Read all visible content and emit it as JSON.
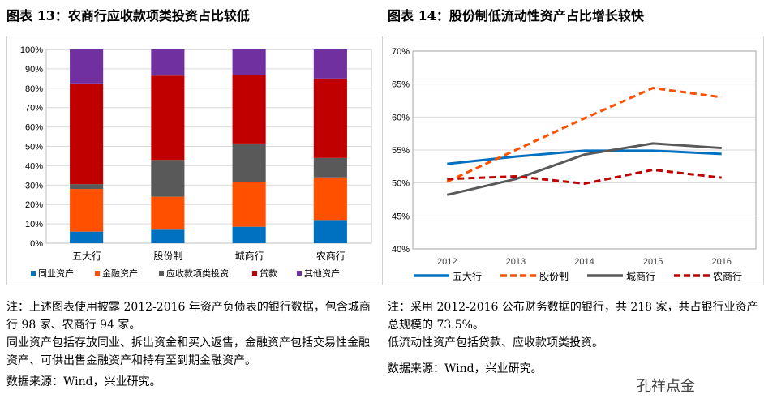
{
  "chart_data": [
    {
      "type": "bar",
      "stacked": true,
      "title": "图表 13：农商行应收款项类投资占比较低",
      "categories": [
        "五大行",
        "股份制",
        "城商行",
        "农商行"
      ],
      "ylim": [
        0,
        100
      ],
      "yticks": [
        "0%",
        "10%",
        "20%",
        "30%",
        "40%",
        "50%",
        "60%",
        "70%",
        "80%",
        "90%",
        "100%"
      ],
      "series": [
        {
          "name": "同业资产",
          "color": "#0070c0",
          "values": [
            6,
            7,
            8.5,
            12
          ]
        },
        {
          "name": "金融资产",
          "color": "#ff5000",
          "values": [
            22,
            17,
            23,
            22
          ]
        },
        {
          "name": "应收款项类投资",
          "color": "#595959",
          "values": [
            2.5,
            19,
            20,
            10
          ]
        },
        {
          "name": "贷款",
          "color": "#c00000",
          "values": [
            52,
            43.5,
            35.5,
            41
          ]
        },
        {
          "name": "其他资产",
          "color": "#7030a0",
          "values": [
            17.5,
            13.5,
            13,
            15
          ]
        }
      ],
      "legend": "bottom",
      "grid": true
    },
    {
      "type": "line",
      "title": "图表 14：股份制低流动性资产占比增长较快",
      "categories": [
        "2012",
        "2013",
        "2014",
        "2015",
        "2016"
      ],
      "ylim": [
        40,
        70
      ],
      "yticks": [
        "40%",
        "45%",
        "50%",
        "55%",
        "60%",
        "65%",
        "70%"
      ],
      "series": [
        {
          "name": "五大行",
          "color": "#0070c0",
          "dash": false,
          "values": [
            52.9,
            54.0,
            54.9,
            54.9,
            54.4
          ]
        },
        {
          "name": "股份制",
          "color": "#ff5000",
          "dash": true,
          "values": [
            50.2,
            55.0,
            59.8,
            64.4,
            63.0
          ]
        },
        {
          "name": "城商行",
          "color": "#595959",
          "dash": false,
          "values": [
            48.2,
            50.6,
            54.3,
            56.0,
            55.3
          ]
        },
        {
          "name": "农商行",
          "color": "#c00000",
          "dash": true,
          "values": [
            50.6,
            51.0,
            49.9,
            52.0,
            50.8
          ]
        }
      ],
      "legend": "bottom",
      "grid": true
    }
  ],
  "notes_left": [
    "注：上述图表使用披露 2012-2016 年资产负债表的银行数据，包含城商行 98 家、农商行 94 家。",
    "同业资产包括存放同业、拆出资金和买入返售，金融资产包括交易性金融资产、可供出售金融资产和持有至到期金融资产。",
    "数据来源：Wind，兴业研究。"
  ],
  "notes_right": [
    "注：采用 2012-2016 公布财务数据的银行，共 218 家，共占银行业资产总规模的 73.5%。",
    "低流动性资产包括贷款、应收款项类投资。",
    "数据来源：Wind，兴业研究。"
  ],
  "watermark": "孔祥点金"
}
